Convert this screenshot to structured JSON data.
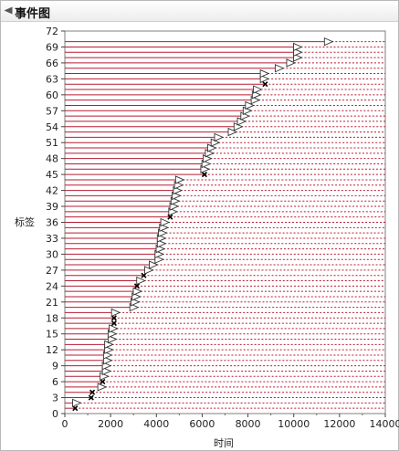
{
  "panel": {
    "title": "事件图"
  },
  "chart_data": {
    "type": "event_plot",
    "xlabel": "时间",
    "ylabel": "标签",
    "xlim": [
      0,
      14000
    ],
    "ylim": [
      0,
      72
    ],
    "xticks": [
      "0",
      "2000",
      "4000",
      "6000",
      "8000",
      "10000",
      "12000",
      "14000"
    ],
    "yticks": [
      "0",
      "3",
      "6",
      "9",
      "12",
      "15",
      "18",
      "21",
      "24",
      "27",
      "30",
      "33",
      "36",
      "39",
      "42",
      "45",
      "48",
      "51",
      "54",
      "57",
      "60",
      "63",
      "66",
      "69",
      "72"
    ],
    "colors": {
      "event_line": "#b81b32",
      "marker": "#000000",
      "triangle_fill": "#ffffff"
    },
    "events": [
      {
        "label": 1,
        "time": 450,
        "type": "failure"
      },
      {
        "label": 2,
        "time": 500,
        "type": "censored"
      },
      {
        "label": 3,
        "time": 1150,
        "type": "failure"
      },
      {
        "label": 4,
        "time": 1200,
        "type": "failure"
      },
      {
        "label": 5,
        "time": 1600,
        "type": "censored"
      },
      {
        "label": 6,
        "time": 1650,
        "type": "failure"
      },
      {
        "label": 7,
        "time": 1700,
        "type": "censored"
      },
      {
        "label": 8,
        "time": 1800,
        "type": "censored"
      },
      {
        "label": 9,
        "time": 1800,
        "type": "censored"
      },
      {
        "label": 10,
        "time": 1850,
        "type": "censored"
      },
      {
        "label": 11,
        "time": 1850,
        "type": "censored"
      },
      {
        "label": 12,
        "time": 1900,
        "type": "censored"
      },
      {
        "label": 13,
        "time": 1900,
        "type": "censored"
      },
      {
        "label": 14,
        "time": 2050,
        "type": "censored"
      },
      {
        "label": 15,
        "time": 2050,
        "type": "censored"
      },
      {
        "label": 16,
        "time": 2100,
        "type": "censored"
      },
      {
        "label": 17,
        "time": 2150,
        "type": "failure"
      },
      {
        "label": 18,
        "time": 2150,
        "type": "failure"
      },
      {
        "label": 19,
        "time": 2200,
        "type": "censored"
      },
      {
        "label": 20,
        "time": 3000,
        "type": "censored"
      },
      {
        "label": 21,
        "time": 3050,
        "type": "censored"
      },
      {
        "label": 22,
        "time": 3100,
        "type": "censored"
      },
      {
        "label": 23,
        "time": 3150,
        "type": "censored"
      },
      {
        "label": 24,
        "time": 3150,
        "type": "failure"
      },
      {
        "label": 25,
        "time": 3300,
        "type": "censored"
      },
      {
        "label": 26,
        "time": 3450,
        "type": "failure"
      },
      {
        "label": 27,
        "time": 3650,
        "type": "censored"
      },
      {
        "label": 28,
        "time": 3850,
        "type": "censored"
      },
      {
        "label": 29,
        "time": 4100,
        "type": "censored"
      },
      {
        "label": 30,
        "time": 4100,
        "type": "censored"
      },
      {
        "label": 31,
        "time": 4150,
        "type": "censored"
      },
      {
        "label": 32,
        "time": 4200,
        "type": "censored"
      },
      {
        "label": 33,
        "time": 4200,
        "type": "censored"
      },
      {
        "label": 34,
        "time": 4250,
        "type": "censored"
      },
      {
        "label": 35,
        "time": 4300,
        "type": "censored"
      },
      {
        "label": 36,
        "time": 4350,
        "type": "censored"
      },
      {
        "label": 37,
        "time": 4600,
        "type": "failure"
      },
      {
        "label": 38,
        "time": 4700,
        "type": "censored"
      },
      {
        "label": 39,
        "time": 4750,
        "type": "censored"
      },
      {
        "label": 40,
        "time": 4800,
        "type": "censored"
      },
      {
        "label": 41,
        "time": 4850,
        "type": "censored"
      },
      {
        "label": 42,
        "time": 4900,
        "type": "censored"
      },
      {
        "label": 43,
        "time": 4950,
        "type": "censored"
      },
      {
        "label": 44,
        "time": 5000,
        "type": "censored"
      },
      {
        "label": 45,
        "time": 6100,
        "type": "failure"
      },
      {
        "label": 46,
        "time": 6100,
        "type": "censored"
      },
      {
        "label": 47,
        "time": 6150,
        "type": "censored"
      },
      {
        "label": 48,
        "time": 6200,
        "type": "censored"
      },
      {
        "label": 49,
        "time": 6300,
        "type": "censored"
      },
      {
        "label": 50,
        "time": 6400,
        "type": "censored"
      },
      {
        "label": 51,
        "time": 6550,
        "type": "censored"
      },
      {
        "label": 52,
        "time": 6700,
        "type": "censored"
      },
      {
        "label": 53,
        "time": 7300,
        "type": "censored"
      },
      {
        "label": 54,
        "time": 7550,
        "type": "censored"
      },
      {
        "label": 55,
        "time": 7700,
        "type": "censored"
      },
      {
        "label": 56,
        "time": 7850,
        "type": "censored"
      },
      {
        "label": 57,
        "time": 7950,
        "type": "censored"
      },
      {
        "label": 58,
        "time": 8050,
        "type": "censored"
      },
      {
        "label": 59,
        "time": 8300,
        "type": "censored"
      },
      {
        "label": 60,
        "time": 8350,
        "type": "censored"
      },
      {
        "label": 61,
        "time": 8400,
        "type": "censored"
      },
      {
        "label": 62,
        "time": 8750,
        "type": "failure"
      },
      {
        "label": 63,
        "time": 8700,
        "type": "censored"
      },
      {
        "label": 64,
        "time": 8700,
        "type": "censored"
      },
      {
        "label": 65,
        "time": 9350,
        "type": "censored"
      },
      {
        "label": 66,
        "time": 9850,
        "type": "censored"
      },
      {
        "label": 67,
        "time": 10150,
        "type": "censored"
      },
      {
        "label": 68,
        "time": 10150,
        "type": "censored"
      },
      {
        "label": 69,
        "time": 10150,
        "type": "censored"
      },
      {
        "label": 70,
        "time": 11500,
        "type": "censored"
      }
    ]
  }
}
